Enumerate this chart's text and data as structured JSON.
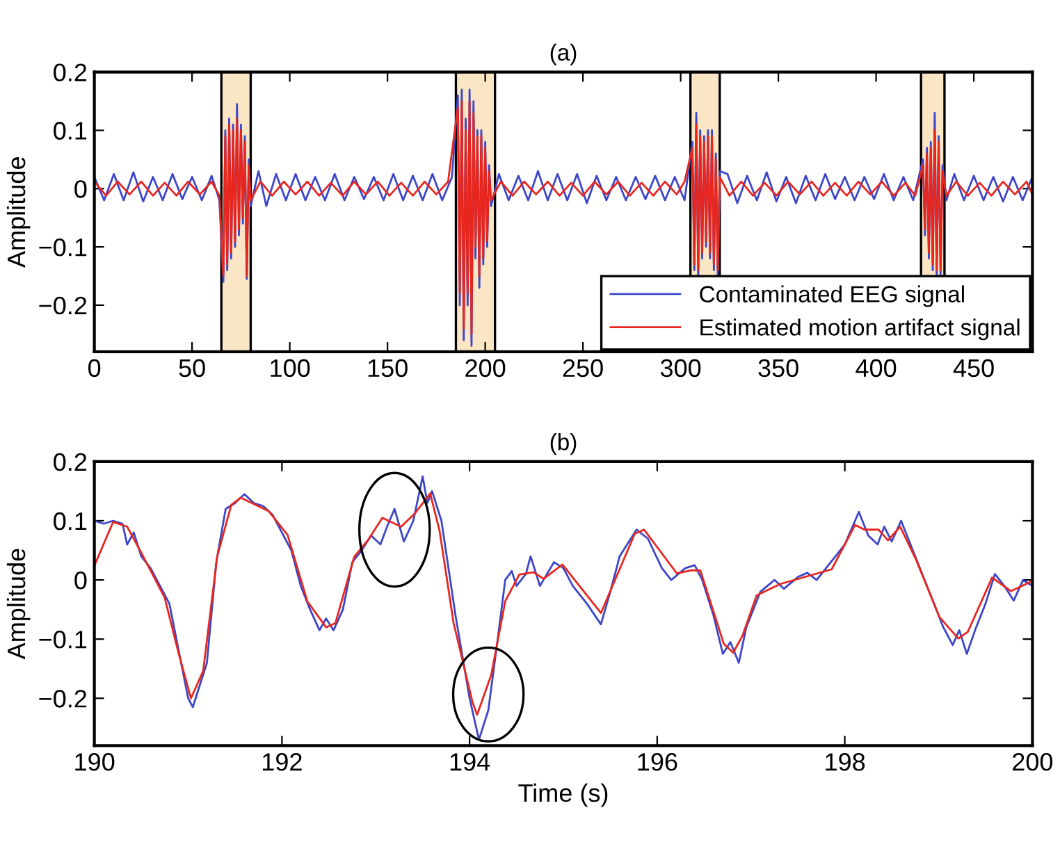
{
  "chart_data": [
    {
      "type": "line",
      "title": "(a)",
      "ylabel": "Amplitude",
      "xlim": [
        0,
        480
      ],
      "ylim": [
        -0.28,
        0.2
      ],
      "xticks": [
        0,
        50,
        100,
        150,
        200,
        250,
        300,
        350,
        400,
        450
      ],
      "yticks": [
        -0.2,
        -0.1,
        0,
        0.1,
        0.2
      ],
      "legend": "bottom right",
      "grid": false,
      "bands": [
        {
          "axis": "x",
          "from": 65,
          "to": 80,
          "color": "#fae6c4"
        },
        {
          "axis": "x",
          "from": 185,
          "to": 205,
          "color": "#fae6c4"
        },
        {
          "axis": "x",
          "from": 305,
          "to": 320,
          "color": "#fae6c4"
        },
        {
          "axis": "x",
          "from": 423,
          "to": 435,
          "color": "#fae6c4"
        }
      ],
      "series": [
        {
          "name": "Contaminated EEG signal",
          "color": "#3c46c8",
          "x": [
            0,
            5,
            10,
            15,
            20,
            25,
            30,
            35,
            40,
            45,
            50,
            55,
            60,
            64,
            66,
            67,
            68,
            69,
            70,
            71,
            72,
            73,
            74,
            75,
            76,
            77,
            78,
            79,
            80,
            84,
            88,
            93,
            98,
            103,
            108,
            113,
            118,
            123,
            128,
            133,
            138,
            143,
            148,
            153,
            158,
            163,
            168,
            173,
            178,
            183,
            186,
            187,
            188,
            189,
            190,
            191,
            192,
            193,
            194,
            195,
            196,
            197,
            198,
            199,
            200,
            201,
            202,
            203,
            207,
            212,
            217,
            222,
            227,
            232,
            237,
            242,
            247,
            252,
            257,
            262,
            267,
            272,
            277,
            282,
            287,
            292,
            297,
            302,
            306,
            307,
            308,
            309,
            310,
            311,
            312,
            313,
            314,
            315,
            316,
            317,
            318,
            319,
            320,
            324,
            329,
            334,
            339,
            344,
            349,
            354,
            359,
            364,
            369,
            374,
            379,
            384,
            389,
            394,
            399,
            404,
            409,
            414,
            419,
            424,
            425,
            426,
            427,
            428,
            429,
            430,
            431,
            432,
            433,
            434,
            436,
            440,
            445,
            450,
            455,
            460,
            465,
            470,
            475,
            480
          ],
          "values": [
            0.02,
            -0.02,
            0.025,
            -0.02,
            0.028,
            -0.022,
            0.02,
            -0.02,
            0.025,
            -0.018,
            0.02,
            -0.02,
            0.022,
            -0.02,
            -0.16,
            0.1,
            -0.14,
            0.12,
            -0.12,
            0.11,
            -0.1,
            0.145,
            -0.08,
            0.11,
            -0.06,
            0.09,
            -0.155,
            0.05,
            -0.03,
            0.03,
            -0.03,
            0.025,
            -0.02,
            0.025,
            -0.02,
            0.02,
            -0.02,
            0.025,
            -0.02,
            0.02,
            -0.018,
            0.02,
            -0.02,
            0.025,
            -0.02,
            0.022,
            -0.02,
            0.025,
            -0.02,
            0.02,
            0.16,
            -0.2,
            0.17,
            -0.26,
            0.12,
            -0.2,
            0.17,
            -0.27,
            0.15,
            -0.12,
            0.1,
            -0.17,
            0.1,
            -0.13,
            0.08,
            -0.1,
            0.04,
            -0.03,
            0.025,
            -0.02,
            0.022,
            -0.02,
            0.03,
            -0.02,
            0.025,
            -0.02,
            0.025,
            -0.025,
            0.022,
            -0.02,
            0.02,
            -0.02,
            0.02,
            -0.018,
            0.022,
            -0.02,
            0.02,
            -0.02,
            0.08,
            -0.14,
            0.13,
            -0.15,
            0.1,
            -0.12,
            0.09,
            -0.1,
            0.1,
            -0.12,
            0.1,
            -0.14,
            0.06,
            -0.15,
            0.03,
            0.025,
            -0.025,
            0.022,
            -0.02,
            0.028,
            -0.022,
            0.02,
            -0.025,
            0.022,
            -0.02,
            0.025,
            -0.018,
            0.02,
            -0.02,
            0.02,
            -0.018,
            0.025,
            -0.02,
            0.02,
            -0.02,
            0.05,
            -0.08,
            0.07,
            -0.12,
            0.08,
            -0.14,
            0.13,
            -0.15,
            0.09,
            -0.15,
            0.04,
            -0.02,
            0.025,
            -0.02,
            0.022,
            -0.02,
            0.02,
            -0.022,
            0.02,
            -0.02,
            0.02
          ]
        },
        {
          "name": "Estimated motion artifact signal",
          "color": "#e8261e",
          "x": [
            0,
            6,
            12,
            18,
            24,
            30,
            36,
            42,
            48,
            54,
            60,
            64,
            66,
            67,
            68,
            69,
            70,
            71,
            72,
            73,
            74,
            75,
            76,
            77,
            78,
            79,
            80,
            85,
            91,
            97,
            103,
            109,
            115,
            121,
            127,
            133,
            139,
            145,
            151,
            157,
            163,
            169,
            175,
            181,
            186,
            187,
            188,
            189,
            190,
            191,
            192,
            193,
            194,
            195,
            196,
            197,
            198,
            199,
            200,
            201,
            202,
            203,
            208,
            214,
            220,
            226,
            232,
            238,
            244,
            250,
            256,
            262,
            268,
            274,
            280,
            286,
            292,
            298,
            302,
            306,
            307,
            308,
            309,
            310,
            311,
            312,
            313,
            314,
            315,
            316,
            317,
            318,
            319,
            320,
            325,
            331,
            337,
            343,
            349,
            355,
            361,
            367,
            373,
            379,
            385,
            391,
            397,
            403,
            409,
            415,
            420,
            424,
            425,
            426,
            427,
            428,
            429,
            430,
            431,
            432,
            433,
            434,
            436,
            441,
            447,
            453,
            459,
            465,
            471,
            477,
            480
          ],
          "values": [
            0.012,
            -0.012,
            0.012,
            -0.01,
            0.012,
            -0.012,
            0.01,
            -0.012,
            0.012,
            -0.01,
            0.012,
            -0.012,
            -0.15,
            0.09,
            -0.13,
            0.11,
            -0.11,
            0.1,
            -0.09,
            0.12,
            -0.07,
            0.1,
            -0.05,
            0.08,
            -0.15,
            0.04,
            -0.02,
            0.012,
            -0.012,
            0.012,
            -0.01,
            0.012,
            -0.012,
            0.01,
            -0.012,
            0.012,
            -0.01,
            0.012,
            -0.012,
            0.01,
            -0.012,
            0.012,
            -0.01,
            0.012,
            0.14,
            -0.18,
            0.15,
            -0.24,
            0.1,
            -0.18,
            0.15,
            -0.25,
            0.13,
            -0.1,
            0.09,
            -0.15,
            0.09,
            -0.12,
            0.07,
            -0.09,
            0.03,
            -0.02,
            0.012,
            -0.012,
            0.012,
            -0.01,
            0.012,
            -0.012,
            0.01,
            -0.012,
            0.012,
            -0.01,
            0.012,
            -0.012,
            0.01,
            -0.012,
            0.012,
            -0.01,
            0.012,
            0.07,
            -0.13,
            0.11,
            -0.14,
            0.09,
            -0.11,
            0.08,
            -0.09,
            0.09,
            -0.11,
            0.09,
            -0.13,
            0.05,
            -0.14,
            0.02,
            -0.012,
            0.012,
            -0.012,
            0.01,
            -0.012,
            0.012,
            -0.01,
            0.012,
            -0.012,
            0.01,
            -0.012,
            0.012,
            -0.01,
            0.012,
            -0.012,
            0.01,
            -0.012,
            0.04,
            -0.07,
            0.06,
            -0.11,
            0.07,
            -0.13,
            0.1,
            -0.14,
            0.08,
            -0.14,
            0.03,
            -0.012,
            0.012,
            -0.012,
            0.01,
            -0.012,
            0.012,
            -0.01,
            0.012,
            -0.01
          ]
        }
      ]
    },
    {
      "type": "line",
      "title": "(b)",
      "xlabel": "Time (s)",
      "ylabel": "Amplitude",
      "xlim": [
        190,
        200
      ],
      "ylim": [
        -0.28,
        0.2
      ],
      "xticks": [
        190,
        192,
        194,
        196,
        198,
        200
      ],
      "yticks": [
        -0.2,
        -0.1,
        0,
        0.1,
        0.2
      ],
      "grid": false,
      "series": [
        {
          "color": "#3c46c8",
          "x": [
            190,
            190.1,
            190.2,
            190.3,
            190.35,
            190.42,
            190.5,
            190.6,
            190.7,
            190.8,
            190.9,
            191.0,
            191.05,
            191.12,
            191.2,
            191.3,
            191.4,
            191.5,
            191.6,
            191.7,
            191.8,
            191.9,
            192.0,
            192.1,
            192.2,
            192.3,
            192.4,
            192.47,
            192.55,
            192.65,
            192.75,
            192.85,
            192.95,
            193.05,
            193.12,
            193.2,
            193.3,
            193.4,
            193.5,
            193.55,
            193.6,
            193.7,
            193.85,
            194.0,
            194.1,
            194.2,
            194.3,
            194.38,
            194.45,
            194.5,
            194.6,
            194.65,
            194.75,
            194.9,
            195.0,
            195.1,
            195.25,
            195.4,
            195.5,
            195.6,
            195.78,
            195.9,
            196.05,
            196.15,
            196.3,
            196.4,
            196.48,
            196.6,
            196.7,
            196.78,
            196.87,
            196.95,
            197.1,
            197.25,
            197.35,
            197.5,
            197.6,
            197.7,
            197.8,
            198.0,
            198.15,
            198.25,
            198.35,
            198.42,
            198.5,
            198.6,
            198.7,
            198.9,
            199.05,
            199.15,
            199.22,
            199.3,
            199.4,
            199.5,
            199.6,
            199.7,
            199.8,
            199.9,
            200
          ],
          "values": [
            0.1,
            0.095,
            0.1,
            0.095,
            0.06,
            0.08,
            0.04,
            0.02,
            -0.01,
            -0.04,
            -0.12,
            -0.2,
            -0.215,
            -0.18,
            -0.14,
            0.03,
            0.12,
            0.13,
            0.145,
            0.13,
            0.125,
            0.11,
            0.08,
            0.05,
            -0.01,
            -0.05,
            -0.085,
            -0.065,
            -0.085,
            -0.05,
            0.03,
            0.05,
            0.075,
            0.06,
            0.09,
            0.12,
            0.065,
            0.1,
            0.175,
            0.13,
            0.15,
            0.1,
            -0.06,
            -0.2,
            -0.27,
            -0.22,
            -0.1,
            0.0,
            0.015,
            -0.01,
            0.01,
            0.04,
            -0.01,
            0.03,
            0.02,
            -0.01,
            -0.04,
            -0.075,
            -0.02,
            0.04,
            0.085,
            0.07,
            0.02,
            0.0,
            0.02,
            0.025,
            0.0,
            -0.06,
            -0.125,
            -0.105,
            -0.14,
            -0.08,
            -0.02,
            0.0,
            -0.015,
            0.005,
            0.012,
            0.0,
            0.02,
            0.06,
            0.115,
            0.075,
            0.06,
            0.09,
            0.065,
            0.1,
            0.06,
            -0.02,
            -0.08,
            -0.11,
            -0.085,
            -0.125,
            -0.08,
            -0.04,
            0.01,
            -0.01,
            -0.035,
            0.0,
            -0.01
          ]
        },
        {
          "color": "#e8261e",
          "x": [
            190,
            190.2,
            190.35,
            190.5,
            190.75,
            190.9,
            191.03,
            191.16,
            191.31,
            191.46,
            191.56,
            191.86,
            192.06,
            192.27,
            192.47,
            192.57,
            192.77,
            192.92,
            193.07,
            193.27,
            193.42,
            193.58,
            193.68,
            193.83,
            194.03,
            194.08,
            194.23,
            194.38,
            194.53,
            194.68,
            194.79,
            194.99,
            195.14,
            195.4,
            195.76,
            195.86,
            196.21,
            196.36,
            196.46,
            196.71,
            196.81,
            196.91,
            197.06,
            197.31,
            197.86,
            198.11,
            198.21,
            198.36,
            198.46,
            198.59,
            198.76,
            199.01,
            199.21,
            199.31,
            199.57,
            199.77,
            199.97,
            200
          ],
          "values": [
            0.024,
            0.098,
            0.09,
            0.046,
            -0.03,
            -0.125,
            -0.2,
            -0.154,
            0.04,
            0.127,
            0.139,
            0.116,
            0.076,
            -0.036,
            -0.08,
            -0.073,
            0.039,
            0.068,
            0.105,
            0.09,
            0.113,
            0.146,
            0.083,
            -0.073,
            -0.206,
            -0.228,
            -0.161,
            -0.036,
            0.009,
            0.013,
            0.002,
            0.026,
            -0.004,
            -0.056,
            0.078,
            0.085,
            0.011,
            0.016,
            0.016,
            -0.108,
            -0.123,
            -0.094,
            -0.026,
            -0.007,
            0.018,
            0.093,
            0.085,
            0.085,
            0.067,
            0.09,
            0.034,
            -0.063,
            -0.099,
            -0.088,
            0.004,
            -0.019,
            -0.004,
            0.0
          ]
        }
      ]
    }
  ]
}
